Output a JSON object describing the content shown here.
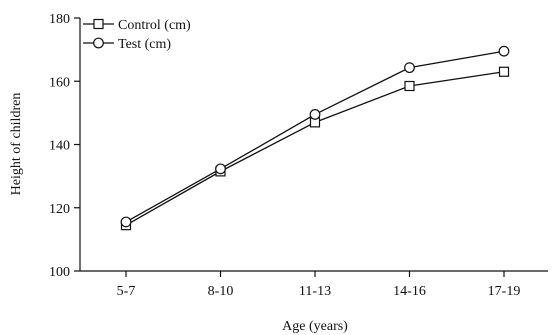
{
  "chart_data": {
    "type": "line",
    "title": "",
    "xlabel": "Age (years)",
    "ylabel": "Height of children",
    "categories": [
      "5-7",
      "8-10",
      "11-13",
      "14-16",
      "17-19"
    ],
    "ylim": [
      100,
      180
    ],
    "yticks": [
      100,
      120,
      140,
      160,
      180
    ],
    "grid": false,
    "legend_position": "top-left",
    "series": [
      {
        "name": "Control (cm)",
        "marker": "square",
        "values": [
          114.5,
          131.5,
          147,
          158.5,
          163
        ],
        "color": "#111111"
      },
      {
        "name": "Test (cm)",
        "marker": "circle",
        "values": [
          115.5,
          132.3,
          149.5,
          164.3,
          169.5
        ],
        "color": "#111111"
      }
    ]
  }
}
